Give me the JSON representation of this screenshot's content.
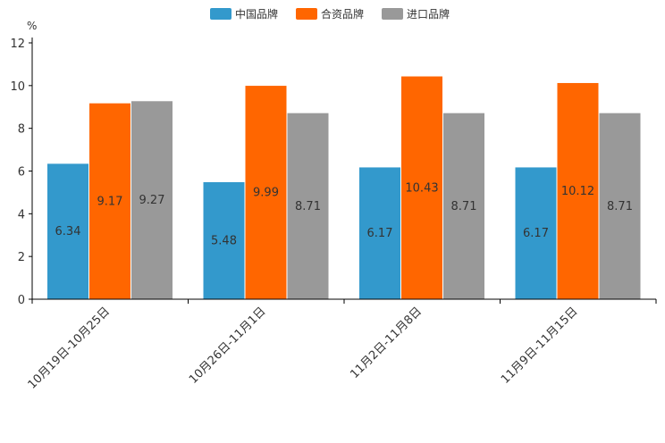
{
  "chart_data": {
    "type": "bar",
    "title": "",
    "ylabel": "%",
    "xlabel": "",
    "ylim": [
      0,
      12
    ],
    "yticks": [
      0,
      2,
      4,
      6,
      8,
      10,
      12
    ],
    "grid": false,
    "legend_position": "top-center",
    "categories": [
      "10月19日-10月25日",
      "10月26日-11月1日",
      "11月2日-11月8日",
      "11月9日-11月15日"
    ],
    "series": [
      {
        "name": "中国品牌",
        "color": "#3399CC",
        "values": [
          6.34,
          5.48,
          6.17,
          6.17
        ]
      },
      {
        "name": "合资品牌",
        "color": "#FF6600",
        "values": [
          9.17,
          9.99,
          10.43,
          10.12
        ]
      },
      {
        "name": "进口品牌",
        "color": "#999999",
        "values": [
          9.27,
          8.71,
          8.71,
          8.71
        ]
      }
    ]
  }
}
